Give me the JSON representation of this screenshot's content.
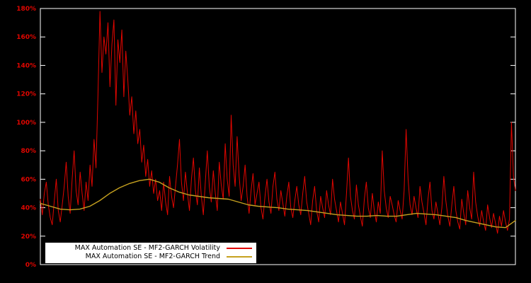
{
  "chart_data": {
    "type": "line",
    "title": "",
    "xlabel": "",
    "ylabel": "",
    "ylim": [
      0,
      180
    ],
    "y_ticks": [
      "0%",
      "20%",
      "40%",
      "60%",
      "80%",
      "100%",
      "120%",
      "140%",
      "160%",
      "180%"
    ],
    "y_tick_values": [
      0,
      20,
      40,
      60,
      80,
      100,
      120,
      140,
      160,
      180
    ],
    "x_tick_labels": [],
    "grid": false,
    "legend_position": "bottom-left",
    "background": "#000000",
    "axis_color": "#ffffff",
    "tick_label_color": "#e10600",
    "legend_background": "#ffffff",
    "legend_text_color": "#000000",
    "series": [
      {
        "name": "MAX Automation SE - MF2-GARCH Volatility",
        "color": "#e10600",
        "width": 1,
        "values": [
          46,
          35,
          50,
          58,
          42,
          33,
          28,
          45,
          60,
          38,
          30,
          42,
          55,
          72,
          48,
          36,
          60,
          80,
          52,
          42,
          65,
          50,
          38,
          58,
          45,
          70,
          55,
          88,
          68,
          120,
          178,
          135,
          160,
          148,
          170,
          125,
          155,
          172,
          112,
          158,
          142,
          165,
          118,
          150,
          130,
          105,
          118,
          92,
          108,
          85,
          95,
          72,
          84,
          62,
          74,
          55,
          66,
          50,
          60,
          45,
          52,
          38,
          58,
          44,
          35,
          62,
          48,
          40,
          55,
          70,
          88,
          58,
          45,
          65,
          50,
          38,
          60,
          75,
          52,
          42,
          68,
          48,
          35,
          58,
          80,
          55,
          44,
          66,
          50,
          38,
          72,
          56,
          46,
          85,
          60,
          48,
          105,
          70,
          55,
          90,
          62,
          45,
          55,
          70,
          48,
          36,
          52,
          64,
          42,
          50,
          58,
          40,
          32,
          48,
          60,
          44,
          36,
          55,
          65,
          46,
          38,
          52,
          43,
          34,
          48,
          58,
          40,
          33,
          45,
          55,
          42,
          35,
          50,
          62,
          44,
          36,
          28,
          45,
          55,
          38,
          30,
          48,
          40,
          33,
          52,
          42,
          35,
          60,
          46,
          38,
          30,
          44,
          36,
          28,
          50,
          75,
          48,
          38,
          32,
          56,
          42,
          34,
          27,
          46,
          58,
          40,
          33,
          50,
          38,
          30,
          44,
          36,
          80,
          52,
          40,
          33,
          48,
          42,
          35,
          30,
          45,
          38,
          32,
          52,
          95,
          60,
          42,
          35,
          48,
          40,
          33,
          55,
          44,
          36,
          28,
          46,
          58,
          38,
          32,
          44,
          36,
          28,
          40,
          62,
          45,
          34,
          27,
          42,
          55,
          38,
          30,
          25,
          46,
          36,
          28,
          52,
          40,
          32,
          65,
          44,
          34,
          27,
          38,
          30,
          24,
          42,
          33,
          26,
          36,
          29,
          22,
          34,
          27,
          38,
          30,
          24,
          32,
          100,
          62,
          52
        ]
      },
      {
        "name": "MAX Automation SE - MF2-GARCH Trend",
        "color": "#c6a11f",
        "width": 1.4,
        "values": [
          43,
          41,
          39,
          38.5,
          39,
          41,
          45,
          50,
          54,
          57,
          59,
          60,
          58,
          54,
          51,
          49,
          48,
          47,
          46.5,
          46,
          44,
          42,
          41,
          40.5,
          40,
          39,
          38.5,
          38,
          37,
          36,
          35,
          34.5,
          34,
          34,
          34.5,
          34,
          34,
          35,
          36,
          35.5,
          35,
          34,
          33,
          31,
          29.5,
          28,
          26.5,
          26,
          31
        ]
      }
    ]
  }
}
